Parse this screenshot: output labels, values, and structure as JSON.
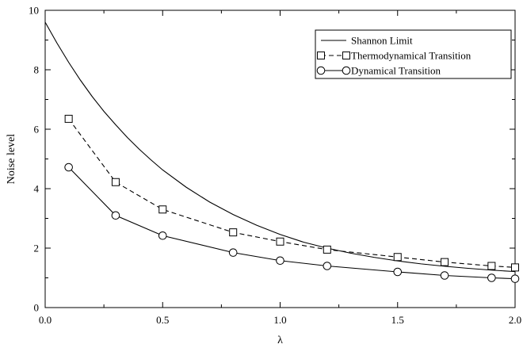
{
  "chart_data": {
    "type": "line",
    "xlabel": "λ",
    "ylabel": "Noise level",
    "xlim": [
      0.0,
      2.0
    ],
    "ylim": [
      0,
      10
    ],
    "xticks": [
      "0.0",
      "0.5",
      "1.0",
      "1.5",
      "2.0"
    ],
    "yticks": [
      "0",
      "2",
      "4",
      "6",
      "8",
      "10"
    ],
    "grid": false,
    "legend_position": "top-right",
    "series": [
      {
        "name": "Shannon Limit",
        "style": "solid",
        "marker": "none",
        "x": [
          0.0,
          0.05,
          0.1,
          0.15,
          0.2,
          0.25,
          0.3,
          0.35,
          0.4,
          0.45,
          0.5,
          0.6,
          0.7,
          0.8,
          0.9,
          1.0,
          1.1,
          1.2,
          1.3,
          1.4,
          1.5,
          1.6,
          1.7,
          1.8,
          1.9,
          2.0
        ],
        "y": [
          9.6,
          8.9,
          8.25,
          7.65,
          7.1,
          6.6,
          6.15,
          5.72,
          5.33,
          4.97,
          4.63,
          4.05,
          3.55,
          3.13,
          2.77,
          2.46,
          2.2,
          2.0,
          1.83,
          1.69,
          1.57,
          1.47,
          1.39,
          1.32,
          1.26,
          1.21
        ]
      },
      {
        "name": "Thermodynamical Transition",
        "style": "dashed",
        "marker": "square",
        "x": [
          0.1,
          0.3,
          0.5,
          0.8,
          1.0,
          1.2,
          1.5,
          1.7,
          1.9,
          2.0
        ],
        "y": [
          6.35,
          4.22,
          3.3,
          2.53,
          2.22,
          1.95,
          1.7,
          1.53,
          1.4,
          1.35
        ]
      },
      {
        "name": "Dynamical Transition",
        "style": "solid",
        "marker": "circle",
        "x": [
          0.1,
          0.3,
          0.5,
          0.8,
          1.0,
          1.2,
          1.5,
          1.7,
          1.9,
          2.0
        ],
        "y": [
          4.72,
          3.1,
          2.42,
          1.85,
          1.58,
          1.4,
          1.2,
          1.08,
          1.0,
          0.97
        ]
      }
    ]
  }
}
